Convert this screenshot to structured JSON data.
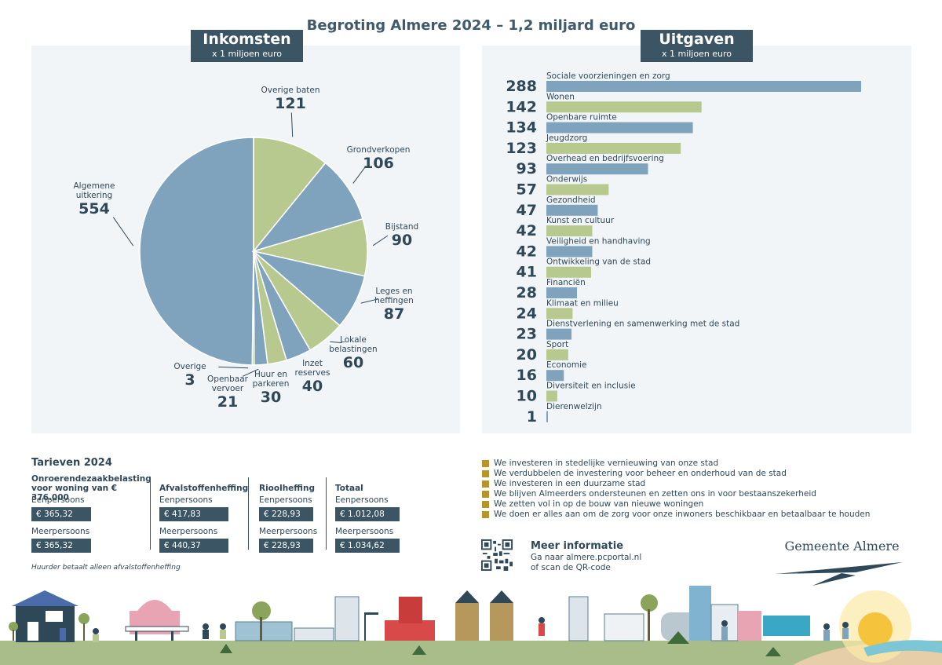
{
  "title": "Begroting Almere 2024 – 1,2 miljard euro",
  "income": {
    "header": "Inkomsten",
    "unit": "x 1 miljoen euro"
  },
  "expenses": {
    "header": "Uitgaven",
    "unit": "x 1 miljoen euro"
  },
  "chart_data": [
    {
      "type": "pie",
      "title": "Inkomsten",
      "unit": "x 1 miljoen euro",
      "slices": [
        {
          "label": "Algemene uitkering",
          "value": 554,
          "color": "#7fa3bd"
        },
        {
          "label": "Overige baten",
          "value": 121,
          "color": "#b7c98f"
        },
        {
          "label": "Grondverkopen",
          "value": 106,
          "color": "#7fa3bd"
        },
        {
          "label": "Bijstand",
          "value": 90,
          "color": "#b7c98f"
        },
        {
          "label": "Leges en heffingen",
          "value": 87,
          "color": "#7fa3bd"
        },
        {
          "label": "Lokale belastingen",
          "value": 60,
          "color": "#b7c98f"
        },
        {
          "label": "Inzet reserves",
          "value": 40,
          "color": "#7fa3bd"
        },
        {
          "label": "Huur en parkeren",
          "value": 30,
          "color": "#b7c98f"
        },
        {
          "label": "Openbaar vervoer",
          "value": 21,
          "color": "#7fa3bd"
        },
        {
          "label": "Overige",
          "value": 3,
          "color": "#b7c98f"
        }
      ]
    },
    {
      "type": "bar",
      "title": "Uitgaven",
      "unit": "x 1 miljoen euro",
      "orientation": "horizontal",
      "colors": [
        "#7fa3bd",
        "#b7c98f"
      ],
      "categories": [
        "Sociale voorzieningen en zorg",
        "Wonen",
        "Openbare ruimte",
        "Jeugdzorg",
        "Overhead en bedrijfsvoering",
        "Onderwijs",
        "Gezondheid",
        "Kunst en cultuur",
        "Veiligheid en handhaving",
        "Ontwikkeling van de stad",
        "Financiën",
        "Klimaat en milieu",
        "Dienstverlening en samenwerking met de stad",
        "Sport",
        "Economie",
        "Diversiteit en inclusie",
        "Dierenwelzijn"
      ],
      "values": [
        288,
        142,
        134,
        123,
        93,
        57,
        47,
        42,
        42,
        41,
        28,
        24,
        23,
        20,
        16,
        10,
        1
      ]
    }
  ],
  "tariffs": {
    "title": "Tarieven 2024",
    "note": "Huurder betaalt alleen afvalstoffenheffing",
    "columns": [
      {
        "heading": "Onroerendezaakbelasting voor woning van € 376.000",
        "single_label": "Eenpersoons",
        "single_value": "€ 365,32",
        "multi_label": "Meerpersoons",
        "multi_value": "€ 365,32"
      },
      {
        "heading": "Afvalstoffenheffing",
        "single_label": "Eenpersoons",
        "single_value": "€ 417,83",
        "multi_label": "Meerpersoons",
        "multi_value": "€ 440,37"
      },
      {
        "heading": "Rioolheffing",
        "single_label": "Eenpersoons",
        "single_value": "€ 228,93",
        "multi_label": "Meerpersoons",
        "multi_value": "€ 228,93"
      },
      {
        "heading": "Totaal",
        "single_label": "Eenpersoons",
        "single_value": "€ 1.012,08",
        "multi_label": "Meerpersoons",
        "multi_value": "€ 1.034,62"
      }
    ]
  },
  "bullets": [
    "We investeren in stedelijke vernieuwing van onze stad",
    "We verdubbelen de investering voor beheer en onderhoud van de stad",
    "We investeren in een duurzame stad",
    "We blijven Almeerders ondersteunen en zetten ons in voor bestaanszekerheid",
    "We zetten vol in op de bouw van nieuwe woningen",
    "We doen er alles aan om de zorg voor onze inwoners beschikbaar en betaalbaar te houden"
  ],
  "more_info": {
    "title": "Meer informatie",
    "line1": "Ga naar almere.pcportal.nl",
    "line2": "of scan de QR-code"
  },
  "logo": {
    "text": "Gemeente Almere"
  }
}
